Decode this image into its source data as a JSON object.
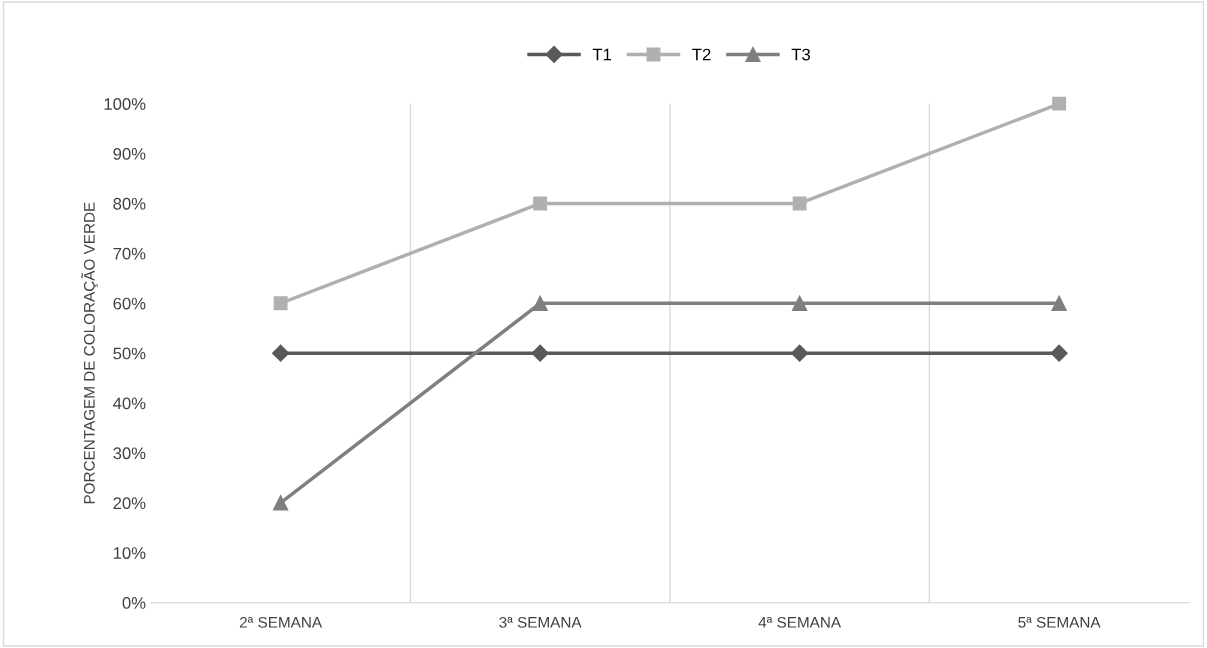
{
  "chart_data": {
    "type": "line",
    "categories": [
      "2ª SEMANA",
      "3ª SEMANA",
      "4ª SEMANA",
      "5ª SEMANA"
    ],
    "ylabel": "PORCENTAGEM DE COLORAÇÃO VERDE",
    "series": [
      {
        "name": "T1",
        "color": "#595959",
        "marker": "diamond",
        "values": [
          50,
          50,
          50,
          50
        ]
      },
      {
        "name": "T2",
        "color": "#b0b0b0",
        "marker": "square",
        "values": [
          60,
          80,
          80,
          100
        ]
      },
      {
        "name": "T3",
        "color": "#7f7f7f",
        "marker": "triangle",
        "values": [
          20,
          60,
          60,
          60
        ]
      }
    ],
    "ylim": [
      0,
      100
    ],
    "yticks": [
      {
        "value": 0,
        "label": "0%"
      },
      {
        "value": 10,
        "label": "10%"
      },
      {
        "value": 20,
        "label": "20%"
      },
      {
        "value": 30,
        "label": "30%"
      },
      {
        "value": 40,
        "label": "40%"
      },
      {
        "value": 50,
        "label": "50%"
      },
      {
        "value": 60,
        "label": "60%"
      },
      {
        "value": 70,
        "label": "70%"
      },
      {
        "value": 80,
        "label": "80%"
      },
      {
        "value": 90,
        "label": "90%"
      },
      {
        "value": 100,
        "label": "100%"
      }
    ],
    "grid": "x",
    "legend": "top"
  }
}
